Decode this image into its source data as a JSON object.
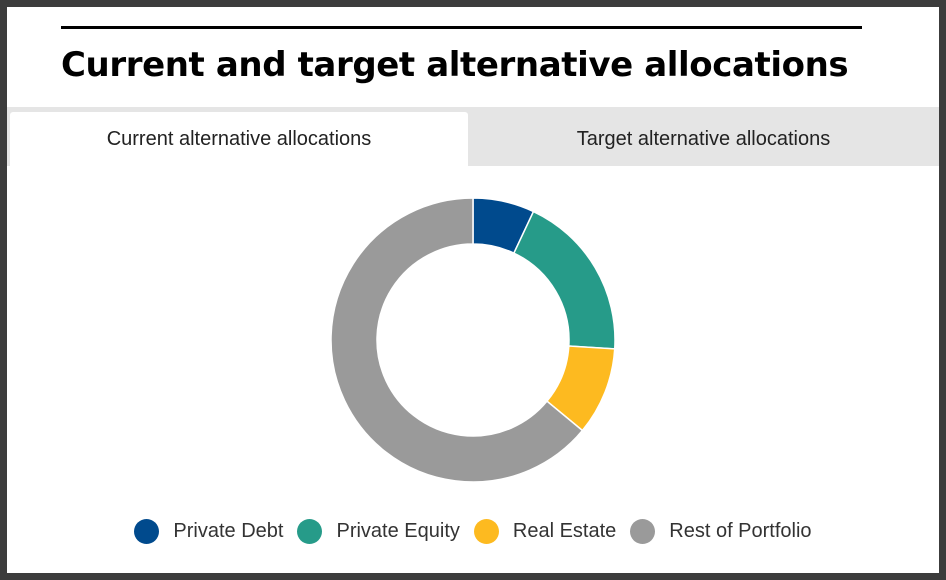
{
  "title": "Current and target alternative allocations",
  "tabs": [
    {
      "label": "Current alternative allocations",
      "active": true
    },
    {
      "label": "Target alternative allocations",
      "active": false
    }
  ],
  "chart_data": {
    "type": "pie",
    "variant": "donut",
    "title": "",
    "legend_position": "bottom",
    "series": [
      {
        "name": "Private Debt",
        "value": 7,
        "color": "#004a8d"
      },
      {
        "name": "Private Equity",
        "value": 19,
        "color": "#269b89"
      },
      {
        "name": "Real Estate",
        "value": 10,
        "color": "#fdba20"
      },
      {
        "name": "Rest of Portfolio",
        "value": 64,
        "color": "#9a9a9a"
      }
    ]
  },
  "colors": {
    "tab_inactive_bg": "#e5e5e5",
    "frame_bg": "#3c3c3c"
  }
}
